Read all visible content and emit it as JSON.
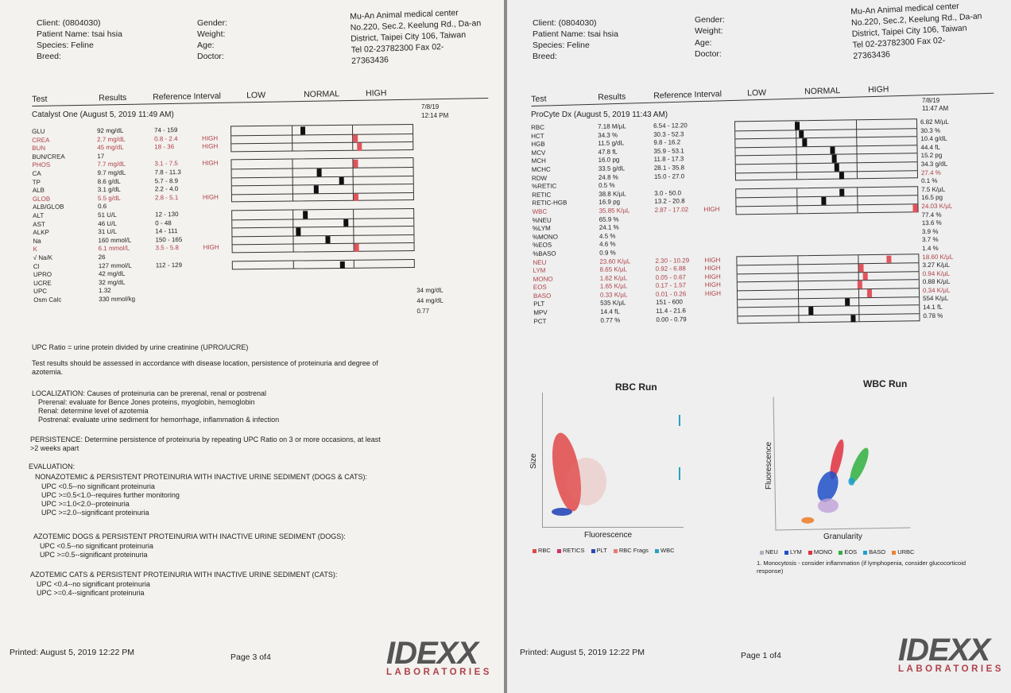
{
  "page3": {
    "client": "Client: (0804030)",
    "patient": "Patient Name: tsai hsia",
    "species": "Species: Feline",
    "breed": "Breed:",
    "gender": "Gender:",
    "weight": "Weight:",
    "age": "Age:",
    "doctor": "Doctor:",
    "clinic": [
      "Mu-An Animal medical center",
      "No.220, Sec.2, Keelung Rd., Da-an",
      "District, Taipei City 106, Taiwan",
      "Tel 02-23782300  Fax 02-",
      "27363436"
    ],
    "col_test": "Test",
    "col_results": "Results",
    "col_ref": "Reference Interval",
    "col_low": "LOW",
    "col_normal": "NORMAL",
    "col_high": "HIGH",
    "run": "Catalyst One (August 5, 2019 11:49 AM)",
    "date": "7/8/19",
    "time": "12:14 PM",
    "tests": [
      "GLU",
      "CREA",
      "BUN",
      "BUN/CREA",
      "PHOS",
      "CA",
      "TP",
      "ALB",
      "GLOB",
      "ALB/GLOB",
      "ALT",
      "AST",
      "ALKP",
      "Na",
      "K",
      "√ Na/K",
      "Cl",
      "UPRO",
      "UCRE",
      "UPC",
      "Osm Calc"
    ],
    "results": [
      "92 mg/dL",
      "2.7 mg/dL",
      "45 mg/dL",
      "17",
      "7.7 mg/dL",
      "9.7 mg/dL",
      "8.6 g/dL",
      "3.1 g/dL",
      "5.5 g/dL",
      "0.6",
      "51 U/L",
      "46 U/L",
      "31 U/L",
      "160 mmol/L",
      "6.1 mmol/L",
      "26",
      "127 mmol/L",
      "42 mg/dL",
      "32 mg/dL",
      "1.32",
      "330 mmol/kg"
    ],
    "refs": [
      "74 - 159",
      "0.8 - 2.4",
      "18 - 36",
      "",
      "3.1 - 7.5",
      "7.8 - 11.3",
      "5.7 - 8.9",
      "2.2 - 4.0",
      "2.8 - 5.1",
      "",
      "12 - 130",
      "0 - 48",
      "14 - 111",
      "150 - 165",
      "3.5 - 5.8",
      "",
      "112 - 129",
      "",
      "",
      "",
      ""
    ],
    "flags": [
      "",
      "HIGH",
      "HIGH",
      "",
      "HIGH",
      "",
      "",
      "",
      "HIGH",
      "",
      "",
      "",
      "",
      "",
      "HIGH",
      "",
      "",
      "",
      "",
      "",
      ""
    ],
    "right_values": [
      "34 mg/dL",
      "44 mg/dL",
      "0.77"
    ],
    "upc_ratio": "UPC Ratio = urine protein divided by urine creatinine (UPRO/UCRE)",
    "assess": "Test results should be assessed in accordance with disease location, persistence of proteinuria and degree of",
    "assess2": "azotemia.",
    "loc_title": "LOCALIZATION: Causes of proteinuria can be prerenal, renal or postrenal",
    "loc_pre": "Prerenal: evaluate for Bence Jones proteins, myoglobin, hemoglobin",
    "loc_renal": "Renal: determine level of azotemia",
    "loc_post": "Postrenal: evaluate urine sediment for hemorrhage, inflammation & infection",
    "persist": "PERSISTENCE: Determine persistence of proteinuria by repeating UPC Ratio on 3 or more occasions, at least",
    "persist2": ">2 weeks apart",
    "eval": "EVALUATION:",
    "eval1_title": "NONAZOTEMIC & PERSISTENT PROTEINURIA WITH INACTIVE URINE SEDIMENT (DOGS & CATS):",
    "eval1_lines": [
      "UPC <0.5--no significant proteinuria",
      "UPC >=0.5<1.0--requires further monitoring",
      "UPC >=1.0<2.0--proteinuria",
      "UPC >=2.0--significant proteinuria"
    ],
    "eval2_title": "AZOTEMIC DOGS & PERSISTENT PROTEINURIA WITH INACTIVE URINE SEDIMENT (DOGS):",
    "eval2_lines": [
      "UPC <0.5--no significant proteinuria",
      "UPC >=0.5--significant proteinuria"
    ],
    "eval3_title": "AZOTEMIC CATS & PERSISTENT PROTEINURIA WITH INACTIVE URINE SEDIMENT (CATS):",
    "eval3_lines": [
      "UPC <0.4--no significant proteinuria",
      "UPC >=0.4--significant proteinuria"
    ],
    "printed": "Printed: August 5, 2019 12:22 PM",
    "page": "Page 3 of4",
    "logo": "IDEXX",
    "logo_sub": "LABORATORIES"
  },
  "page1": {
    "client": "Client: (0804030)",
    "patient": "Patient Name: tsai hsia",
    "species": "Species: Feline",
    "breed": "Breed:",
    "gender": "Gender:",
    "weight": "Weight:",
    "age": "Age:",
    "doctor": "Doctor:",
    "clinic": [
      "Mu-An Animal medical center",
      "No.220, Sec.2, Keelung Rd., Da-an",
      "District, Taipei City 106, Taiwan",
      "Tel 02-23782300  Fax 02-",
      "27363436"
    ],
    "col_test": "Test",
    "col_results": "Results",
    "col_ref": "Reference Interval",
    "col_low": "LOW",
    "col_normal": "NORMAL",
    "col_high": "HIGH",
    "run": "ProCyte Dx (August 5, 2019 11:43 AM)",
    "date": "7/8/19",
    "time": "11:47 AM",
    "tests": [
      "RBC",
      "HCT",
      "HGB",
      "MCV",
      "MCH",
      "MCHC",
      "RDW",
      "%RETIC",
      "RETIC",
      "RETIC-HGB",
      "WBC",
      "%NEU",
      "%LYM",
      "%MONO",
      "%EOS",
      "%BASO",
      "NEU",
      "LYM",
      "MONO",
      "EOS",
      "BASO",
      "PLT",
      "MPV",
      "PCT"
    ],
    "results": [
      "7.18 M/µL",
      "34.3 %",
      "11.5 g/dL",
      "47.8 fL",
      "16.0 pg",
      "33.5 g/dL",
      "24.8 %",
      "0.5 %",
      "38.8 K/µL",
      "16.9 pg",
      "35.85 K/µL",
      "65.9 %",
      "24.1 %",
      "4.5 %",
      "4.6 %",
      "0.9 %",
      "23.60 K/µL",
      "8.65 K/µL",
      "1.62 K/µL",
      "1.65 K/µL",
      "0.33 K/µL",
      "535 K/µL",
      "14.4 fL",
      "0.77 %"
    ],
    "refs": [
      "6.54 - 12.20",
      "30.3 - 52.3",
      "9.8 - 16.2",
      "35.9 - 53.1",
      "11.8 - 17.3",
      "28.1 - 35.8",
      "15.0 - 27.0",
      "",
      "3.0 - 50.0",
      "13.2 - 20.8",
      "2.87 - 17.02",
      "",
      "",
      "",
      "",
      "",
      "2.30 - 10.29",
      "0.92 - 6.88",
      "0.05 - 0.67",
      "0.17 - 1.57",
      "0.01 - 0.26",
      "151 - 600",
      "11.4 - 21.6",
      "0.00 - 0.79"
    ],
    "flags": [
      "",
      "",
      "",
      "",
      "",
      "",
      "",
      "",
      "",
      "",
      "HIGH",
      "",
      "",
      "",
      "",
      "",
      "HIGH",
      "HIGH",
      "HIGH",
      "HIGH",
      "HIGH",
      "",
      "",
      ""
    ],
    "right_values": [
      "6.82 M/µL",
      "30.3 %",
      "10.4 g/dL",
      "44.4 fL",
      "15.2 pg",
      "34.3 g/dL",
      "27.4 %",
      "0.1 %",
      "7.5 K/µL",
      "16.5 pg",
      "24.03 K/µL",
      "77.4 %",
      "13.6 %",
      "3.9 %",
      "3.7 %",
      "1.4 %",
      "18.60 K/µL",
      "3.27 K/µL",
      "0.94 K/µL",
      "0.88 K/µL",
      "0.34 K/µL",
      "554 K/µL",
      "14.1 fL",
      "0.78 %"
    ],
    "rbc_title": "RBC Run",
    "rbc_x": "Fluorescence",
    "rbc_y": "Size",
    "rbc_legend": [
      "RBC",
      "RETICS",
      "PLT",
      "RBC Frags",
      "WBC"
    ],
    "wbc_title": "WBC Run",
    "wbc_x": "Granularity",
    "wbc_y": "Fluorescence",
    "wbc_legend": [
      "NEU",
      "LYM",
      "MONO",
      "EOS",
      "BASO",
      "URBC"
    ],
    "note": "1. Monocytosis - consider inflammation (if lymphopenia, consider glucocorticoid",
    "note2": "response)",
    "printed": "Printed: August 5, 2019 12:22 PM",
    "page": "Page 1 of4",
    "logo": "IDEXX",
    "logo_sub": "LABORATORIES",
    "colors": {
      "rbc": "#e04848",
      "retics": "#d03070",
      "plt": "#2848b8",
      "frags": "#e87878",
      "wbc": "#2aa0c0",
      "neu": "#b0b0c0",
      "lym": "#2050c8",
      "mono": "#e03040",
      "eos": "#30b040",
      "baso": "#20a0d0",
      "urbc": "#f08030"
    }
  }
}
